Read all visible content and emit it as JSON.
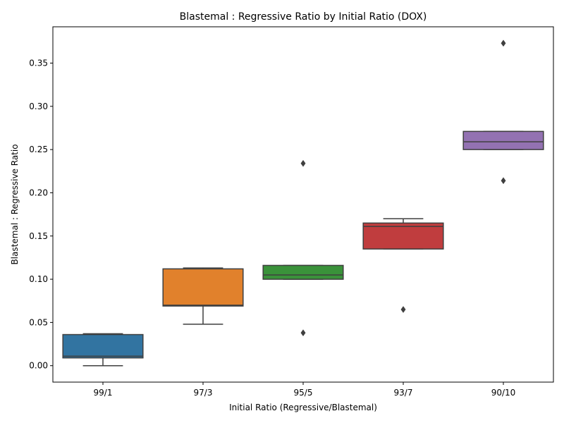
{
  "chart_data": {
    "type": "box",
    "title": "Blastemal : Regressive Ratio by Initial Ratio (DOX)",
    "xlabel": "Initial Ratio (Regressive/Blastemal)",
    "ylabel": "Blastemal : Regressive Ratio",
    "categories": [
      "99/1",
      "97/3",
      "95/5",
      "93/7",
      "90/10"
    ],
    "ylim": [
      -0.019,
      0.392
    ],
    "yticks": [
      0.0,
      0.05,
      0.1,
      0.15,
      0.2,
      0.25,
      0.3,
      0.35
    ],
    "ytick_labels": [
      "0.00",
      "0.05",
      "0.10",
      "0.15",
      "0.20",
      "0.25",
      "0.30",
      "0.35"
    ],
    "grid": false,
    "boxes": [
      {
        "category": "99/1",
        "color": "#3274a1",
        "whisker_low": 0.0,
        "q1": 0.009,
        "median": 0.011,
        "q3": 0.036,
        "whisker_high": 0.037,
        "outliers": []
      },
      {
        "category": "97/3",
        "color": "#e1812c",
        "whisker_low": 0.048,
        "q1": 0.069,
        "median": 0.07,
        "q3": 0.112,
        "whisker_high": 0.113,
        "outliers": []
      },
      {
        "category": "95/5",
        "color": "#3a923a",
        "whisker_low": 0.1,
        "q1": 0.1,
        "median": 0.105,
        "q3": 0.116,
        "whisker_high": 0.116,
        "outliers": [
          0.234,
          0.038
        ]
      },
      {
        "category": "93/7",
        "color": "#c03d3e",
        "whisker_low": 0.135,
        "q1": 0.135,
        "median": 0.161,
        "q3": 0.165,
        "whisker_high": 0.17,
        "outliers": [
          0.065
        ]
      },
      {
        "category": "90/10",
        "color": "#9372b2",
        "whisker_low": 0.25,
        "q1": 0.25,
        "median": 0.259,
        "q3": 0.271,
        "whisker_high": 0.271,
        "outliers": [
          0.373,
          0.214
        ]
      }
    ]
  }
}
